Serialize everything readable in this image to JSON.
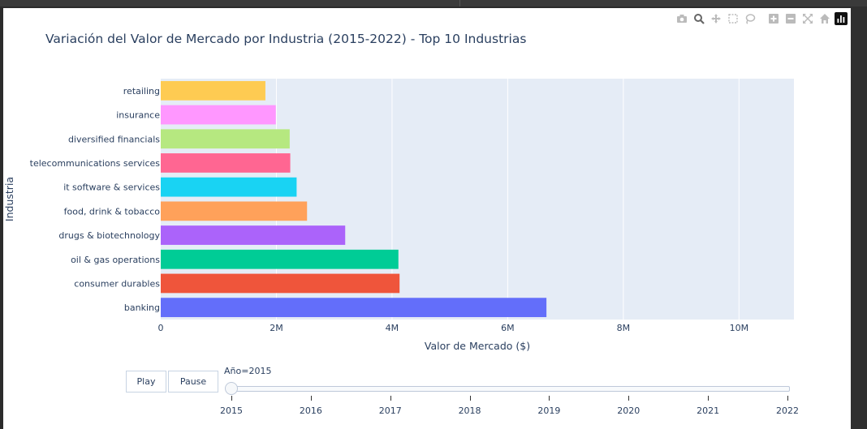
{
  "chart_data": {
    "type": "bar",
    "orientation": "horizontal",
    "title": "Variación del Valor de Mercado por Industria (2015-2022) - Top 10 Industrias",
    "xlabel": "Valor de Mercado ($)",
    "ylabel": "Industria",
    "xlim": [
      0,
      10950000
    ],
    "xticks": [
      {
        "v": 0,
        "label": "0"
      },
      {
        "v": 2000000,
        "label": "2M"
      },
      {
        "v": 4000000,
        "label": "4M"
      },
      {
        "v": 6000000,
        "label": "6M"
      },
      {
        "v": 8000000,
        "label": "8M"
      },
      {
        "v": 10000000,
        "label": "10M"
      }
    ],
    "grid": true,
    "legend": "none",
    "categories": [
      "banking",
      "consumer durables",
      "oil & gas operations",
      "drugs & biotechnology",
      "food, drink & tobacco",
      "it software & services",
      "telecommunications services",
      "diversified financials",
      "insurance",
      "retailing"
    ],
    "values": [
      6670000,
      4130000,
      4110000,
      3190000,
      2530000,
      2350000,
      2240000,
      2230000,
      1990000,
      1810000
    ],
    "colors": [
      "#636efa",
      "#ef553b",
      "#00cc96",
      "#ab63fa",
      "#ffa15a",
      "#19d3f3",
      "#ff6692",
      "#b6e880",
      "#ff97ff",
      "#fecb52"
    ]
  },
  "animation": {
    "play_label": "Play",
    "pause_label": "Pause",
    "slider_prefix": "Año=2015",
    "current_index": 0,
    "steps": [
      "2015",
      "2016",
      "2017",
      "2018",
      "2019",
      "2020",
      "2021",
      "2022"
    ]
  },
  "modebar": {
    "icons": [
      "camera-icon",
      "zoom-icon",
      "pan-icon",
      "box-select-icon",
      "lasso-icon",
      "zoom-in-icon",
      "zoom-out-icon",
      "autoscale-icon",
      "home-icon",
      "plotly-logo-icon"
    ]
  }
}
